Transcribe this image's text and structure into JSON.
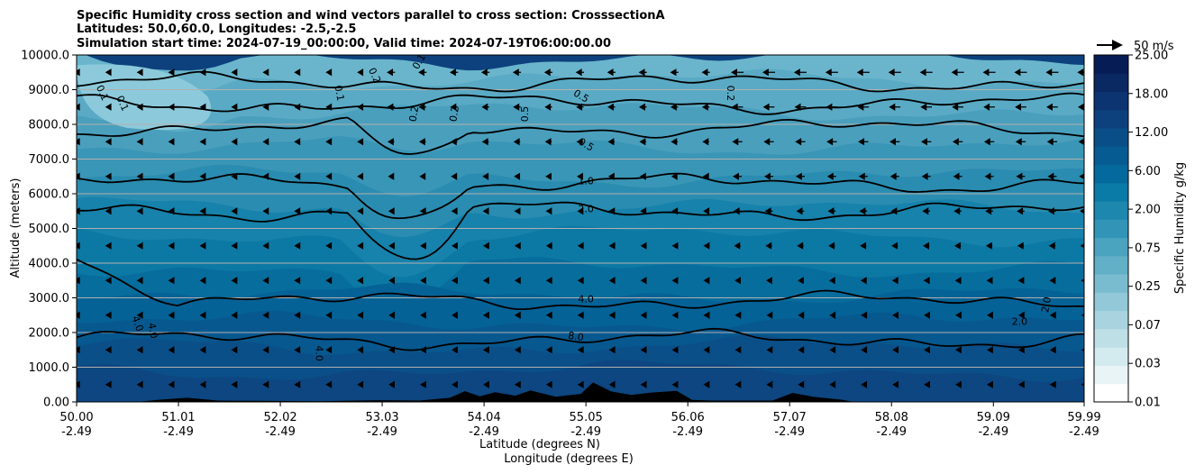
{
  "chart_data": {
    "type": "contour",
    "title_lines": [
      "Specific Humidity cross section and wind vectors parallel to cross section: CrosssectionA",
      "Latitudes: 50.0,60.0, Longitudes: -2.5,-2.5",
      "Simulation start time: 2024-07-19_00:00:00, Valid time: 2024-07-19T06:00:00.00"
    ],
    "ylabel": "Altitude (meters)",
    "xlabel_lines": [
      "Latitude (degrees N)",
      "Longitude (degrees E)"
    ],
    "ylim": [
      0,
      10000
    ],
    "yticks": [
      "0.00",
      "1000.0",
      "2000.0",
      "3000.0",
      "4000.0",
      "5000.0",
      "6000.0",
      "7000.0",
      "8000.0",
      "9000.0",
      "10000.0"
    ],
    "xticks": [
      {
        "lat": "50.00",
        "lon": "-2.49"
      },
      {
        "lat": "51.01",
        "lon": "-2.49"
      },
      {
        "lat": "52.02",
        "lon": "-2.49"
      },
      {
        "lat": "53.03",
        "lon": "-2.49"
      },
      {
        "lat": "54.04",
        "lon": "-2.49"
      },
      {
        "lat": "55.05",
        "lon": "-2.49"
      },
      {
        "lat": "56.06",
        "lon": "-2.49"
      },
      {
        "lat": "57.07",
        "lon": "-2.49"
      },
      {
        "lat": "58.08",
        "lon": "-2.49"
      },
      {
        "lat": "59.09",
        "lon": "-2.49"
      },
      {
        "lat": "59.99",
        "lon": "-2.49"
      }
    ],
    "grid": "horizontal",
    "colorbar": {
      "label": "Specific Humidity g/kg",
      "tick_labels": [
        "0.01",
        "0.03",
        "0.07",
        "0.25",
        "0.75",
        "2.00",
        "6.00",
        "12.00",
        "18.00",
        "25.00"
      ],
      "colors": [
        "#ffffff",
        "#e9f4f6",
        "#d3eaee",
        "#bfdfe7",
        "#a9d4df",
        "#92c8d7",
        "#7abccf",
        "#62b0c7",
        "#4aa3bf",
        "#3295b7",
        "#1d87ae",
        "#0a7aa6",
        "#04699c",
        "#055b92",
        "#0a4e88",
        "#0d417d",
        "#0c3470",
        "#0a2862",
        "#061c55"
      ]
    },
    "quiver_key": "50 m/s",
    "contour_levels": [
      {
        "value": "0.1",
        "altitude": 9200
      },
      {
        "value": "0.2",
        "altitude": 8600
      },
      {
        "value": "0.5",
        "altitude": 7900
      },
      {
        "value": "1.0",
        "altitude": 6300
      },
      {
        "value": "2.0",
        "altitude": 5500
      },
      {
        "value": "4.0",
        "altitude": 2900
      },
      {
        "value": "8.0",
        "altitude": 1800
      }
    ],
    "contour_labels": [
      {
        "text": "0.1",
        "lat": 50.25,
        "alt": 8900,
        "rot": 65
      },
      {
        "text": "0.1",
        "lat": 50.45,
        "alt": 8600,
        "rot": 65
      },
      {
        "text": "0.2",
        "lat": 52.95,
        "alt": 9400,
        "rot": 65
      },
      {
        "text": "0.1",
        "lat": 53.4,
        "alt": 9800,
        "rot": -60
      },
      {
        "text": "0.1",
        "lat": 52.6,
        "alt": 8900,
        "rot": 80
      },
      {
        "text": "0.2",
        "lat": 53.35,
        "alt": 8300,
        "rot": -80
      },
      {
        "text": "0.2",
        "lat": 53.75,
        "alt": 8300,
        "rot": -80
      },
      {
        "text": "0.5",
        "lat": 54.45,
        "alt": 8300,
        "rot": -90
      },
      {
        "text": "0.5",
        "lat": 55.0,
        "alt": 8800,
        "rot": 30
      },
      {
        "text": "0.2",
        "lat": 56.48,
        "alt": 8900,
        "rot": 90
      },
      {
        "text": "0.5",
        "lat": 55.05,
        "alt": 7400,
        "rot": 30
      },
      {
        "text": "1.0",
        "lat": 55.05,
        "alt": 6350,
        "rot": 0
      },
      {
        "text": "2.0",
        "lat": 55.05,
        "alt": 5550,
        "rot": 0
      },
      {
        "text": "4.0",
        "lat": 55.05,
        "alt": 2950,
        "rot": 0
      },
      {
        "text": "8.0",
        "lat": 54.95,
        "alt": 1870,
        "rot": 8
      },
      {
        "text": "4.0",
        "lat": 50.6,
        "alt": 2250,
        "rot": 70
      },
      {
        "text": "4.0",
        "lat": 50.75,
        "alt": 2050,
        "rot": 80
      },
      {
        "text": "4.0",
        "lat": 52.4,
        "alt": 1400,
        "rot": 90
      },
      {
        "text": "2.0",
        "lat": 59.35,
        "alt": 2300,
        "rot": 0
      },
      {
        "text": "2.0",
        "lat": 59.62,
        "alt": 2800,
        "rot": -80
      }
    ]
  }
}
